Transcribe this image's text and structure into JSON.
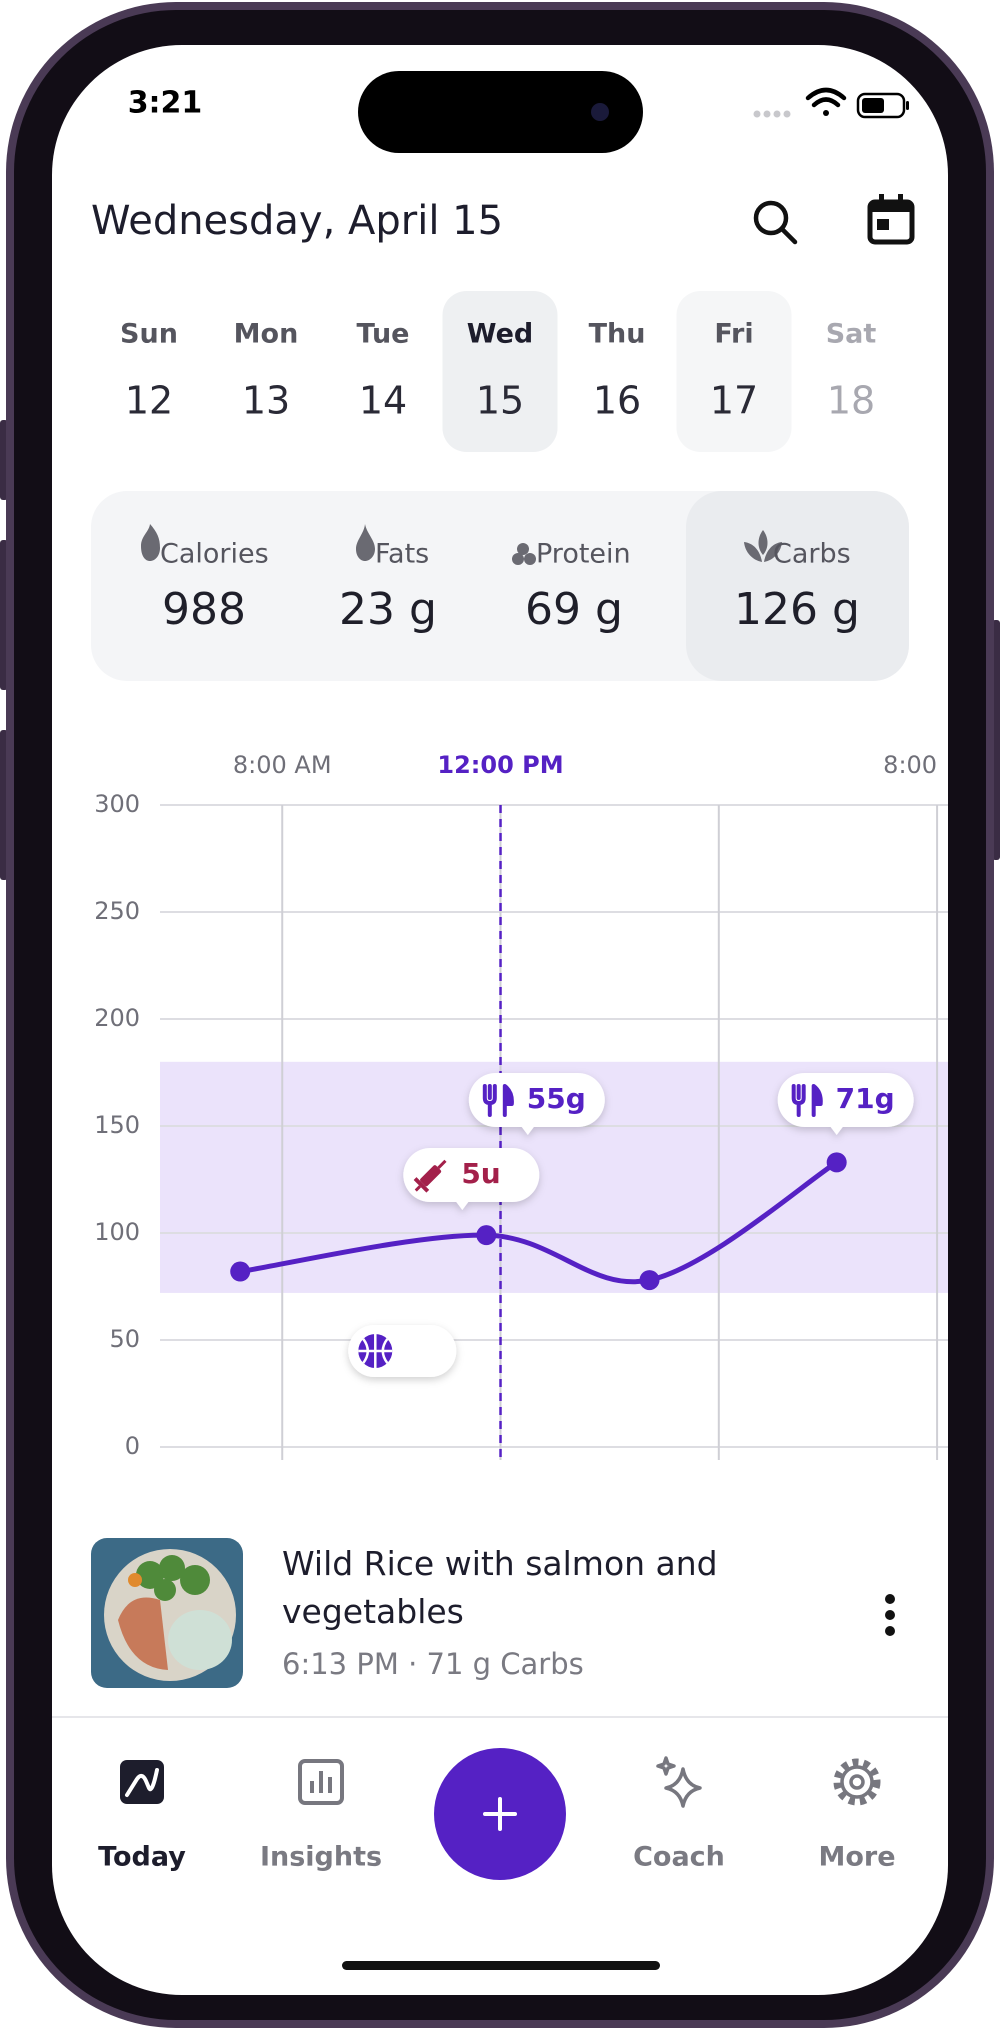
{
  "status_bar": {
    "time": "3:21"
  },
  "header": {
    "title": "Wednesday, April 15"
  },
  "week": [
    {
      "day": "Sun",
      "date": 12
    },
    {
      "day": "Mon",
      "date": 13
    },
    {
      "day": "Tue",
      "date": 14
    },
    {
      "day": "Wed",
      "date": 15,
      "state": "selected"
    },
    {
      "day": "Thu",
      "date": 16
    },
    {
      "day": "Fri",
      "date": 17,
      "state": "highlight"
    },
    {
      "day": "Sat",
      "date": 18,
      "state": "future"
    }
  ],
  "summary": [
    {
      "label": "Calories",
      "value": "988"
    },
    {
      "label": "Fats",
      "value": "23 g"
    },
    {
      "label": "Protein",
      "value": "69 g"
    },
    {
      "label": "Carbs",
      "value": "126 g",
      "highlight": true
    }
  ],
  "chart": {
    "xlim": [
      5.76,
      20.2
    ],
    "xticks": [
      {
        "value": 8,
        "label": "8:00 AM"
      },
      {
        "value": 12,
        "label": "12:00 PM"
      },
      {
        "value": 16,
        "label": null
      },
      {
        "value": 20,
        "label": "8:00"
      }
    ],
    "current_time": 12,
    "ylim": [
      0,
      300
    ],
    "yticks": [
      0,
      50,
      100,
      150,
      200,
      250,
      300
    ],
    "target_range": [
      72,
      180
    ],
    "color": "#5521c4",
    "band_color": "#ebe3fb",
    "points": {
      "x": [
        7.23,
        11.74,
        14.73,
        18.16
      ],
      "y": [
        82,
        99,
        78,
        133
      ]
    },
    "annotations": [
      {
        "kind": "insulin",
        "x": 11.3,
        "label": "5u"
      },
      {
        "kind": "meal",
        "x": 12.5,
        "label": "55g"
      },
      {
        "kind": "meal",
        "x": 18.16,
        "label": "71g"
      },
      {
        "kind": "exercise",
        "x": 10.2
      }
    ]
  },
  "meal": {
    "title": "Wild Rice with salmon and vegetables",
    "meta": "6:13 PM · 71 g Carbs"
  },
  "nav": [
    {
      "label": "Today",
      "active": true
    },
    {
      "label": "Insights"
    },
    {
      "label": "Coach"
    },
    {
      "label": "More"
    }
  ]
}
